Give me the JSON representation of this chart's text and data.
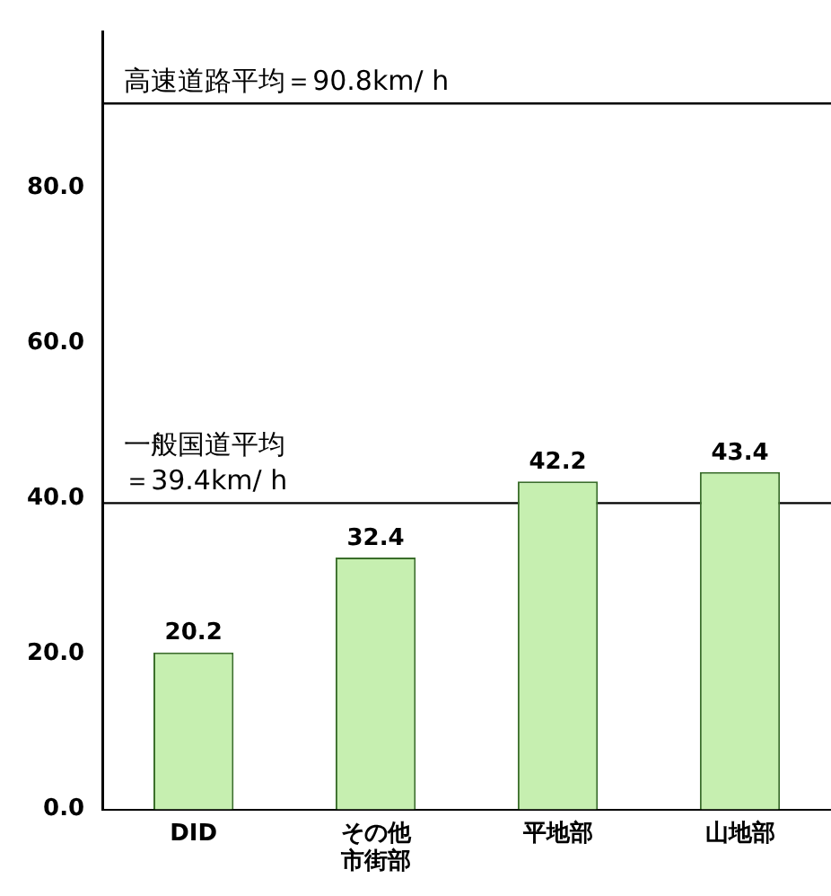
{
  "chart_data": {
    "type": "bar",
    "categories": [
      "DID",
      "その他市街部",
      "平地部",
      "山地部"
    ],
    "values": [
      20.2,
      32.4,
      42.2,
      43.4
    ],
    "color": "#c6efb0",
    "ylim": [
      0,
      100
    ],
    "yticks": [
      {
        "value": 0,
        "label": "0.0"
      },
      {
        "value": 20,
        "label": "20.0"
      },
      {
        "value": 40,
        "label": "40.0"
      },
      {
        "value": 60,
        "label": "60.0"
      },
      {
        "value": 80,
        "label": "80.0"
      }
    ],
    "ref_lines": [
      {
        "axis": "y",
        "value": 90.8,
        "label": "高速道路平均＝90.8km/ h"
      },
      {
        "axis": "y",
        "value": 39.4,
        "label": "一般国道平均＝39.4km/ h"
      }
    ],
    "data_labels": true,
    "grid": false,
    "legend": false
  }
}
